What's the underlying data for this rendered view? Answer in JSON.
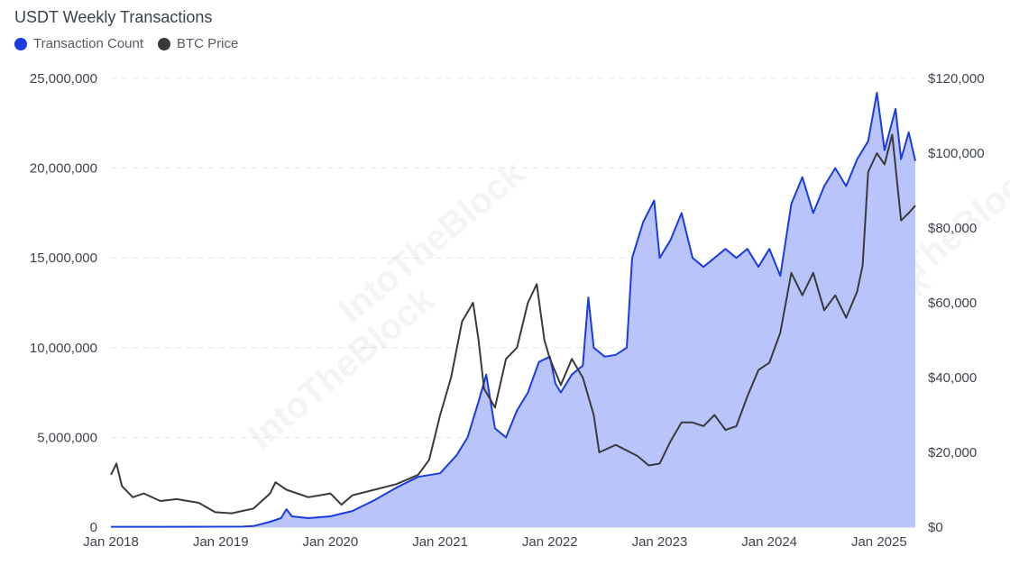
{
  "chart_data": {
    "type": "area",
    "title": "USDT Weekly Transactions",
    "legend": {
      "position": "top-left"
    },
    "grid": true,
    "watermark": "IntoTheBlock",
    "x_ticks": [
      "Jan 2018",
      "Jan 2019",
      "Jan 2020",
      "Jan 2021",
      "Jan 2022",
      "Jan 2023",
      "Jan 2024",
      "Jan 2025"
    ],
    "y_left": {
      "ylim": [
        0,
        25000000
      ],
      "ticks": [
        "0",
        "5,000,000",
        "10,000,000",
        "15,000,000",
        "20,000,000",
        "25,000,000"
      ]
    },
    "y_right": {
      "ylim": [
        0,
        120000
      ],
      "ticks": [
        "$0",
        "$20,000",
        "$40,000",
        "$60,000",
        "$80,000",
        "$100,000",
        "$120,000"
      ]
    },
    "series": [
      {
        "name": "Transaction Count",
        "color": "#1a3ce0",
        "fill": "#b8c4fa",
        "axis": "left",
        "points": [
          [
            2018.0,
            20000
          ],
          [
            2018.5,
            20000
          ],
          [
            2019.0,
            25000
          ],
          [
            2019.2,
            30000
          ],
          [
            2019.3,
            60000
          ],
          [
            2019.45,
            300000
          ],
          [
            2019.55,
            500000
          ],
          [
            2019.6,
            1000000
          ],
          [
            2019.65,
            600000
          ],
          [
            2019.8,
            500000
          ],
          [
            2020.0,
            600000
          ],
          [
            2020.2,
            900000
          ],
          [
            2020.4,
            1500000
          ],
          [
            2020.6,
            2200000
          ],
          [
            2020.8,
            2800000
          ],
          [
            2021.0,
            3000000
          ],
          [
            2021.15,
            4000000
          ],
          [
            2021.25,
            5000000
          ],
          [
            2021.35,
            7000000
          ],
          [
            2021.42,
            8500000
          ],
          [
            2021.5,
            5500000
          ],
          [
            2021.6,
            5000000
          ],
          [
            2021.7,
            6500000
          ],
          [
            2021.8,
            7500000
          ],
          [
            2021.9,
            9200000
          ],
          [
            2022.0,
            9500000
          ],
          [
            2022.05,
            8000000
          ],
          [
            2022.1,
            7500000
          ],
          [
            2022.2,
            8500000
          ],
          [
            2022.3,
            9000000
          ],
          [
            2022.35,
            12800000
          ],
          [
            2022.4,
            10000000
          ],
          [
            2022.5,
            9500000
          ],
          [
            2022.6,
            9600000
          ],
          [
            2022.7,
            10000000
          ],
          [
            2022.75,
            15000000
          ],
          [
            2022.85,
            17000000
          ],
          [
            2022.95,
            18200000
          ],
          [
            2023.0,
            15000000
          ],
          [
            2023.1,
            16000000
          ],
          [
            2023.2,
            17500000
          ],
          [
            2023.3,
            15000000
          ],
          [
            2023.4,
            14500000
          ],
          [
            2023.5,
            15000000
          ],
          [
            2023.6,
            15500000
          ],
          [
            2023.7,
            15000000
          ],
          [
            2023.8,
            15500000
          ],
          [
            2023.9,
            14500000
          ],
          [
            2024.0,
            15500000
          ],
          [
            2024.1,
            14000000
          ],
          [
            2024.2,
            18000000
          ],
          [
            2024.3,
            19500000
          ],
          [
            2024.4,
            17500000
          ],
          [
            2024.5,
            19000000
          ],
          [
            2024.6,
            20000000
          ],
          [
            2024.7,
            19000000
          ],
          [
            2024.8,
            20500000
          ],
          [
            2024.9,
            21500000
          ],
          [
            2024.98,
            24200000
          ],
          [
            2025.05,
            21000000
          ],
          [
            2025.15,
            23300000
          ],
          [
            2025.2,
            20500000
          ],
          [
            2025.27,
            22000000
          ],
          [
            2025.33,
            20400000
          ]
        ]
      },
      {
        "name": "BTC Price",
        "color": "#3a3a3a",
        "axis": "right",
        "points": [
          [
            2018.0,
            14000
          ],
          [
            2018.05,
            17000
          ],
          [
            2018.1,
            11000
          ],
          [
            2018.2,
            8000
          ],
          [
            2018.3,
            9000
          ],
          [
            2018.45,
            7000
          ],
          [
            2018.6,
            7500
          ],
          [
            2018.8,
            6500
          ],
          [
            2018.95,
            4000
          ],
          [
            2019.1,
            3700
          ],
          [
            2019.3,
            5000
          ],
          [
            2019.45,
            9000
          ],
          [
            2019.5,
            12000
          ],
          [
            2019.6,
            10000
          ],
          [
            2019.8,
            8000
          ],
          [
            2020.0,
            9000
          ],
          [
            2020.1,
            6000
          ],
          [
            2020.2,
            8500
          ],
          [
            2020.4,
            10000
          ],
          [
            2020.6,
            11500
          ],
          [
            2020.8,
            14000
          ],
          [
            2020.9,
            18000
          ],
          [
            2021.0,
            30000
          ],
          [
            2021.1,
            40000
          ],
          [
            2021.2,
            55000
          ],
          [
            2021.3,
            60000
          ],
          [
            2021.35,
            50000
          ],
          [
            2021.4,
            37000
          ],
          [
            2021.5,
            32000
          ],
          [
            2021.6,
            45000
          ],
          [
            2021.7,
            48000
          ],
          [
            2021.8,
            60000
          ],
          [
            2021.88,
            65000
          ],
          [
            2021.95,
            50000
          ],
          [
            2022.0,
            45000
          ],
          [
            2022.1,
            38000
          ],
          [
            2022.2,
            45000
          ],
          [
            2022.3,
            40000
          ],
          [
            2022.4,
            30000
          ],
          [
            2022.45,
            20000
          ],
          [
            2022.6,
            22000
          ],
          [
            2022.8,
            19000
          ],
          [
            2022.9,
            16500
          ],
          [
            2023.0,
            17000
          ],
          [
            2023.1,
            23000
          ],
          [
            2023.2,
            28000
          ],
          [
            2023.3,
            28000
          ],
          [
            2023.4,
            27000
          ],
          [
            2023.5,
            30000
          ],
          [
            2023.6,
            26000
          ],
          [
            2023.7,
            27000
          ],
          [
            2023.8,
            35000
          ],
          [
            2023.9,
            42000
          ],
          [
            2024.0,
            44000
          ],
          [
            2024.1,
            52000
          ],
          [
            2024.2,
            68000
          ],
          [
            2024.3,
            62000
          ],
          [
            2024.4,
            68000
          ],
          [
            2024.5,
            58000
          ],
          [
            2024.6,
            62000
          ],
          [
            2024.7,
            56000
          ],
          [
            2024.8,
            63000
          ],
          [
            2024.85,
            70000
          ],
          [
            2024.9,
            95000
          ],
          [
            2024.98,
            100000
          ],
          [
            2025.05,
            97000
          ],
          [
            2025.12,
            105000
          ],
          [
            2025.2,
            82000
          ],
          [
            2025.27,
            84000
          ],
          [
            2025.33,
            86000
          ]
        ]
      }
    ]
  }
}
